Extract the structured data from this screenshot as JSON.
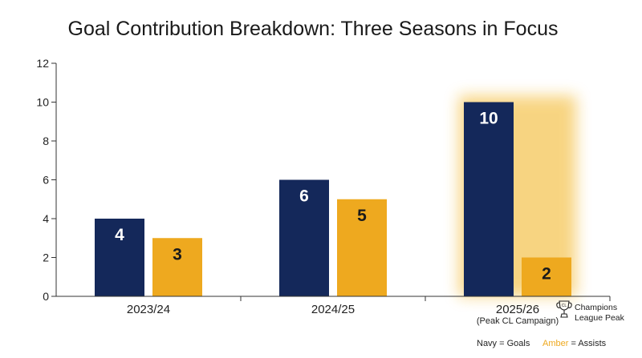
{
  "chart_data": {
    "type": "bar",
    "title": "Goal Contribution Breakdown: Three Seasons in Focus",
    "categories": [
      "2023/24",
      "2024/25",
      "2025/26"
    ],
    "category_sublabels": [
      "",
      "",
      "(Peak CL Campaign)"
    ],
    "series": [
      {
        "name": "Goals",
        "values": [
          4,
          6,
          10
        ],
        "color": "#14285a"
      },
      {
        "name": "Assists",
        "values": [
          3,
          5,
          2
        ],
        "color": "#eea91f"
      }
    ],
    "ylim": [
      0,
      12
    ],
    "yticks": [
      0,
      2,
      4,
      6,
      8,
      10,
      12
    ],
    "grid": false,
    "highlight_category": "2025/26",
    "annotation": {
      "icon": "trophy-icon",
      "line1": "Champions",
      "line2": "League Peak"
    },
    "legend": {
      "placement": "bottom-right",
      "goals_label": "Navy = Goals",
      "amber_word": "Amber",
      "assists_rest": " = Assists",
      "amber_color": "#eea91f"
    }
  }
}
